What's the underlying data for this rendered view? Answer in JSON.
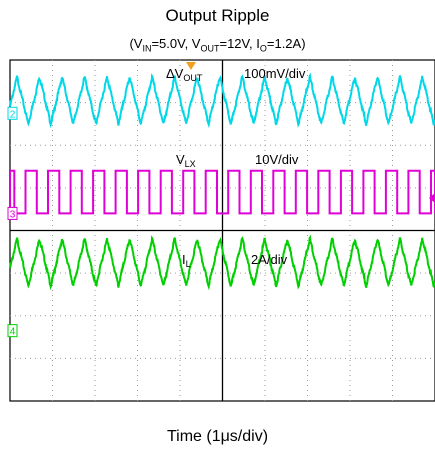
{
  "title": "Output Ripple",
  "subtitle": {
    "prefix": "(V",
    "vin_sub": "IN",
    "vin_val": "=5.0V, V",
    "vout_sub": "OUT",
    "vout_val": "=12V, I",
    "io_sub": "O",
    "io_val": "=1.2A)"
  },
  "xlabel": "Time (1μs/div)",
  "chart_data": {
    "type": "line",
    "title": "Output Ripple",
    "xlabel": "Time (1μs/div)",
    "x_scale": "1μs/div",
    "divisions_x": 10,
    "divisions_y": 8,
    "grid": true,
    "channels": [
      {
        "id": "2",
        "name": "ΔV",
        "name_sub": "OUT",
        "scale": "100mV/div",
        "color": "#00d8e8",
        "waveform": "triangle",
        "period_us": 0.53,
        "amplitude_div": 0.55,
        "center_div": 3.05
      },
      {
        "id": "3",
        "name": "V",
        "name_sub": "LX",
        "scale": "10V/div",
        "color": "#e000d8",
        "waveform": "square",
        "period_us": 0.53,
        "duty": 0.5,
        "low_div": 0.4,
        "high_div": 1.4,
        "ground_div": 0.6
      },
      {
        "id": "4",
        "name": "I",
        "name_sub": "L",
        "scale": "2A/div",
        "color": "#00d000",
        "waveform": "triangle",
        "period_us": 0.53,
        "amplitude_div": 0.55,
        "center_div": -0.75
      }
    ]
  }
}
